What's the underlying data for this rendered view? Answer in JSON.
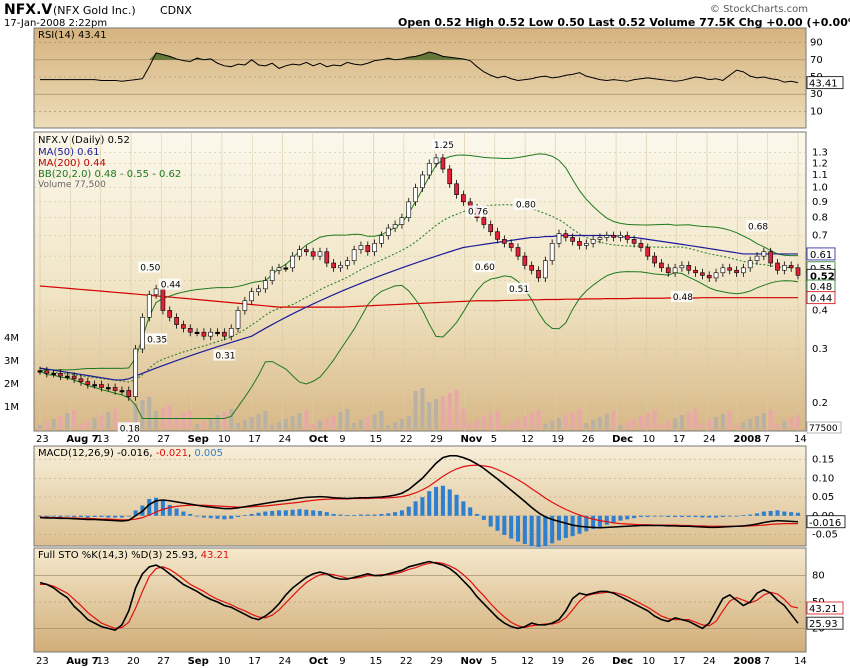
{
  "header": {
    "symbol": "NFX.V",
    "name": "(NFX Gold Inc.)",
    "exchange": "CDNX",
    "date": "17-Jan-2008 2:22pm",
    "quote": "Open 0.52  High 0.52  Low 0.50  Last 0.52  Volume 77.5K  Chg +0.00 (+0.00%)",
    "attribution": "© StockCharts.com"
  },
  "colors": {
    "panel_bg_top": "#f3eedb",
    "panel_bg_bottom": "#d7b88a",
    "up_candle": "#ffffff",
    "down_candle": "#e0213a",
    "black_candle": "#000000",
    "ma50": "#1c1c9a",
    "ma200": "#d40000",
    "bb": "#1e7a1e",
    "volume": "#b9b1a3",
    "macd_line": "#000000",
    "signal_line": "#e01010",
    "histogram": "#2f7fd0"
  },
  "chart_data": [
    {
      "type": "line",
      "panel": "rsi",
      "title": "RSI(14) 43.41",
      "yticks": [
        10,
        30,
        50,
        70,
        90
      ],
      "last_label": "43.41",
      "series": [
        {
          "name": "RSI(14)",
          "values": [
            47,
            47,
            47,
            47,
            47,
            47,
            47,
            47,
            47,
            46,
            46,
            46,
            45,
            46,
            47,
            48,
            62,
            78,
            76,
            74,
            71,
            69,
            68,
            72,
            70,
            71,
            66,
            63,
            62,
            65,
            64,
            70,
            64,
            63,
            66,
            60,
            63,
            65,
            64,
            67,
            63,
            66,
            62,
            64,
            63,
            67,
            65,
            64,
            66,
            69,
            70,
            72,
            70,
            71,
            73,
            74,
            76,
            79,
            77,
            74,
            73,
            72,
            71,
            69,
            62,
            56,
            52,
            49,
            51,
            48,
            46,
            47,
            48,
            50,
            51,
            49,
            50,
            52,
            53,
            55,
            51,
            49,
            47,
            46,
            47,
            46,
            45,
            47,
            48,
            49,
            48,
            47,
            46,
            45,
            46,
            48,
            50,
            49,
            47,
            48,
            46,
            52,
            58,
            56,
            51,
            49,
            50,
            48,
            47,
            44,
            45,
            43.41
          ]
        }
      ]
    },
    {
      "type": "candlestick",
      "panel": "price",
      "title": "NFX.V (Daily) 0.52",
      "legend": [
        "MA(50) 0.61",
        "MA(200) 0.44",
        "BB(20,2.0) 0.48 - 0.55 - 0.62",
        "Volume 77,500"
      ],
      "ylim": [
        0.17,
        1.45
      ],
      "log_scale": true,
      "yticks": [
        0.2,
        0.3,
        0.4,
        0.5,
        0.6,
        0.7,
        0.8,
        0.9,
        1.0,
        1.1,
        1.2,
        1.3
      ],
      "volume_ticks": [
        "1M",
        "2M",
        "3M",
        "4M"
      ],
      "volume_last": "77500",
      "price_tags": [
        "0.61",
        "0.55",
        "0.52",
        "0.48",
        "0.44"
      ],
      "annotations": [
        "0.50",
        "0.44",
        "0.35",
        "0.31",
        "0.18",
        "1.25",
        "0.76",
        "0.80",
        "0.60",
        "0.51",
        "0.68",
        "0.48"
      ],
      "x_labels": [
        "23",
        "Aug 7",
        "13",
        "20",
        "27",
        "Sep",
        "10",
        "17",
        "24",
        "Oct",
        "9",
        "15",
        "22",
        "29",
        "Nov",
        "5",
        "12",
        "19",
        "26",
        "Dec",
        "10",
        "17",
        "24",
        "2008",
        "7",
        "14"
      ],
      "closes": [
        0.255,
        0.25,
        0.25,
        0.245,
        0.245,
        0.24,
        0.235,
        0.23,
        0.23,
        0.225,
        0.225,
        0.22,
        0.22,
        0.21,
        0.3,
        0.38,
        0.45,
        0.47,
        0.4,
        0.38,
        0.36,
        0.35,
        0.34,
        0.34,
        0.33,
        0.34,
        0.34,
        0.33,
        0.35,
        0.4,
        0.43,
        0.46,
        0.47,
        0.5,
        0.54,
        0.55,
        0.55,
        0.6,
        0.63,
        0.62,
        0.6,
        0.62,
        0.57,
        0.55,
        0.56,
        0.58,
        0.63,
        0.65,
        0.62,
        0.66,
        0.7,
        0.74,
        0.76,
        0.8,
        0.9,
        1.0,
        1.1,
        1.2,
        1.25,
        1.15,
        1.03,
        0.95,
        0.9,
        0.86,
        0.8,
        0.76,
        0.72,
        0.68,
        0.66,
        0.64,
        0.6,
        0.56,
        0.54,
        0.51,
        0.58,
        0.66,
        0.71,
        0.69,
        0.67,
        0.65,
        0.66,
        0.68,
        0.69,
        0.7,
        0.69,
        0.7,
        0.68,
        0.66,
        0.64,
        0.6,
        0.57,
        0.55,
        0.53,
        0.55,
        0.56,
        0.54,
        0.53,
        0.52,
        0.51,
        0.53,
        0.55,
        0.54,
        0.53,
        0.55,
        0.58,
        0.6,
        0.62,
        0.57,
        0.54,
        0.56,
        0.55,
        0.52
      ],
      "ma50": [
        0.26,
        0.258,
        0.256,
        0.254,
        0.252,
        0.25,
        0.248,
        0.246,
        0.244,
        0.242,
        0.24,
        0.238,
        0.238,
        0.24,
        0.245,
        0.25,
        0.255,
        0.26,
        0.265,
        0.27,
        0.275,
        0.28,
        0.285,
        0.29,
        0.295,
        0.3,
        0.305,
        0.31,
        0.315,
        0.32,
        0.325,
        0.33,
        0.34,
        0.35,
        0.36,
        0.37,
        0.38,
        0.39,
        0.4,
        0.41,
        0.42,
        0.43,
        0.44,
        0.45,
        0.46,
        0.47,
        0.48,
        0.49,
        0.5,
        0.51,
        0.52,
        0.53,
        0.54,
        0.55,
        0.56,
        0.57,
        0.58,
        0.59,
        0.6,
        0.61,
        0.62,
        0.63,
        0.64,
        0.645,
        0.65,
        0.655,
        0.66,
        0.665,
        0.67,
        0.675,
        0.68,
        0.685,
        0.69,
        0.69,
        0.695,
        0.695,
        0.7,
        0.7,
        0.7,
        0.7,
        0.7,
        0.7,
        0.7,
        0.7,
        0.7,
        0.695,
        0.69,
        0.69,
        0.685,
        0.68,
        0.675,
        0.67,
        0.665,
        0.66,
        0.655,
        0.65,
        0.645,
        0.64,
        0.635,
        0.63,
        0.625,
        0.62,
        0.615,
        0.61,
        0.61,
        0.61,
        0.61,
        0.61,
        0.61,
        0.61,
        0.61,
        0.61
      ],
      "ma200": [
        0.48,
        0.478,
        0.476,
        0.474,
        0.472,
        0.47,
        0.468,
        0.466,
        0.464,
        0.462,
        0.46,
        0.458,
        0.456,
        0.454,
        0.452,
        0.45,
        0.448,
        0.446,
        0.444,
        0.442,
        0.44,
        0.438,
        0.436,
        0.434,
        0.432,
        0.43,
        0.428,
        0.426,
        0.424,
        0.422,
        0.42,
        0.418,
        0.416,
        0.414,
        0.412,
        0.41,
        0.41,
        0.41,
        0.41,
        0.41,
        0.41,
        0.41,
        0.41,
        0.41,
        0.41,
        0.411,
        0.412,
        0.413,
        0.414,
        0.415,
        0.416,
        0.417,
        0.418,
        0.419,
        0.42,
        0.421,
        0.422,
        0.423,
        0.424,
        0.425,
        0.426,
        0.427,
        0.428,
        0.429,
        0.43,
        0.43,
        0.43,
        0.43,
        0.431,
        0.431,
        0.432,
        0.432,
        0.433,
        0.433,
        0.434,
        0.434,
        0.434,
        0.435,
        0.435,
        0.435,
        0.436,
        0.436,
        0.436,
        0.437,
        0.437,
        0.437,
        0.437,
        0.438,
        0.438,
        0.438,
        0.438,
        0.438,
        0.439,
        0.439,
        0.439,
        0.439,
        0.439,
        0.44,
        0.44,
        0.44,
        0.44,
        0.44,
        0.44,
        0.44,
        0.44,
        0.44,
        0.44,
        0.44,
        0.44,
        0.44,
        0.44,
        0.44
      ]
    },
    {
      "type": "line",
      "panel": "macd",
      "title": "MACD(12,26,9) -0.016, -0.021, 0.005",
      "yticks": [
        -0.05,
        0.0,
        0.05,
        0.1,
        0.15
      ],
      "last_label": "-0.016",
      "series": [
        {
          "name": "MACD",
          "values": [
            -0.005,
            -0.006,
            -0.006,
            -0.007,
            -0.007,
            -0.008,
            -0.009,
            -0.01,
            -0.01,
            -0.011,
            -0.012,
            -0.013,
            -0.014,
            -0.012,
            0.0,
            0.012,
            0.03,
            0.04,
            0.042,
            0.04,
            0.037,
            0.034,
            0.031,
            0.028,
            0.025,
            0.023,
            0.021,
            0.019,
            0.019,
            0.021,
            0.024,
            0.027,
            0.03,
            0.033,
            0.036,
            0.039,
            0.041,
            0.044,
            0.047,
            0.049,
            0.05,
            0.051,
            0.05,
            0.048,
            0.047,
            0.046,
            0.047,
            0.048,
            0.048,
            0.049,
            0.05,
            0.052,
            0.055,
            0.06,
            0.07,
            0.085,
            0.1,
            0.12,
            0.14,
            0.155,
            0.16,
            0.16,
            0.155,
            0.148,
            0.138,
            0.126,
            0.112,
            0.098,
            0.083,
            0.068,
            0.053,
            0.038,
            0.022,
            0.008,
            -0.003,
            -0.01,
            -0.015,
            -0.02,
            -0.025,
            -0.028,
            -0.03,
            -0.031,
            -0.032,
            -0.031,
            -0.03,
            -0.029,
            -0.028,
            -0.027,
            -0.026,
            -0.026,
            -0.026,
            -0.026,
            -0.027,
            -0.027,
            -0.028,
            -0.028,
            -0.029,
            -0.03,
            -0.031,
            -0.031,
            -0.03,
            -0.029,
            -0.028,
            -0.027,
            -0.025,
            -0.022,
            -0.018,
            -0.015,
            -0.013,
            -0.014,
            -0.015,
            -0.016
          ]
        },
        {
          "name": "Signal",
          "values": [
            -0.004,
            -0.004,
            -0.005,
            -0.005,
            -0.006,
            -0.006,
            -0.007,
            -0.007,
            -0.008,
            -0.009,
            -0.009,
            -0.01,
            -0.011,
            -0.011,
            -0.009,
            -0.005,
            0.002,
            0.01,
            0.017,
            0.022,
            0.025,
            0.027,
            0.028,
            0.028,
            0.028,
            0.027,
            0.026,
            0.025,
            0.024,
            0.023,
            0.023,
            0.024,
            0.025,
            0.026,
            0.028,
            0.03,
            0.032,
            0.034,
            0.036,
            0.039,
            0.041,
            0.043,
            0.044,
            0.045,
            0.045,
            0.045,
            0.046,
            0.046,
            0.046,
            0.047,
            0.047,
            0.048,
            0.049,
            0.051,
            0.055,
            0.061,
            0.069,
            0.079,
            0.092,
            0.105,
            0.116,
            0.125,
            0.131,
            0.134,
            0.135,
            0.133,
            0.13,
            0.123,
            0.115,
            0.106,
            0.096,
            0.085,
            0.072,
            0.06,
            0.047,
            0.036,
            0.026,
            0.017,
            0.009,
            0.002,
            -0.004,
            -0.009,
            -0.013,
            -0.016,
            -0.019,
            -0.021,
            -0.022,
            -0.023,
            -0.024,
            -0.024,
            -0.025,
            -0.025,
            -0.025,
            -0.025,
            -0.026,
            -0.026,
            -0.027,
            -0.027,
            -0.028,
            -0.028,
            -0.028,
            -0.028,
            -0.028,
            -0.028,
            -0.027,
            -0.026,
            -0.025,
            -0.023,
            -0.022,
            -0.021,
            -0.021,
            -0.021
          ]
        }
      ]
    },
    {
      "type": "line",
      "panel": "sto",
      "title": "Full STO %K(14,3) %D(3) 25.93, 43.21",
      "yticks": [
        20,
        50,
        80
      ],
      "last_labels": [
        "43.21",
        "25.93"
      ],
      "series": [
        {
          "name": "%K",
          "values": [
            72,
            70,
            66,
            60,
            55,
            45,
            38,
            30,
            26,
            22,
            20,
            18,
            24,
            40,
            66,
            82,
            90,
            92,
            88,
            82,
            76,
            70,
            66,
            62,
            57,
            53,
            50,
            46,
            44,
            40,
            36,
            32,
            30,
            34,
            40,
            48,
            58,
            66,
            72,
            78,
            82,
            84,
            82,
            78,
            76,
            76,
            78,
            80,
            82,
            80,
            80,
            82,
            84,
            86,
            90,
            92,
            94,
            96,
            94,
            92,
            88,
            82,
            74,
            66,
            56,
            48,
            40,
            32,
            26,
            22,
            20,
            22,
            26,
            24,
            24,
            26,
            30,
            40,
            54,
            60,
            58,
            60,
            62,
            62,
            60,
            56,
            52,
            48,
            44,
            40,
            34,
            30,
            28,
            32,
            30,
            28,
            24,
            20,
            26,
            40,
            54,
            58,
            52,
            46,
            50,
            60,
            64,
            60,
            52,
            46,
            36,
            25.93
          ]
        },
        {
          "name": "%D",
          "values": [
            70,
            70,
            68,
            64,
            60,
            53,
            46,
            38,
            32,
            26,
            23,
            20,
            21,
            27,
            43,
            62,
            79,
            88,
            90,
            87,
            82,
            76,
            70,
            66,
            62,
            57,
            53,
            50,
            47,
            43,
            40,
            36,
            33,
            32,
            35,
            41,
            49,
            57,
            65,
            72,
            77,
            81,
            82,
            81,
            79,
            77,
            77,
            78,
            80,
            80,
            81,
            81,
            82,
            84,
            87,
            89,
            92,
            94,
            95,
            94,
            91,
            87,
            81,
            74,
            65,
            57,
            48,
            40,
            33,
            27,
            23,
            21,
            23,
            24,
            25,
            25,
            27,
            32,
            41,
            51,
            57,
            59,
            60,
            61,
            61,
            59,
            56,
            52,
            48,
            44,
            39,
            34,
            31,
            30,
            30,
            30,
            27,
            24,
            23,
            28,
            40,
            51,
            55,
            52,
            49,
            52,
            58,
            61,
            59,
            53,
            45,
            43.21
          ]
        }
      ]
    }
  ]
}
